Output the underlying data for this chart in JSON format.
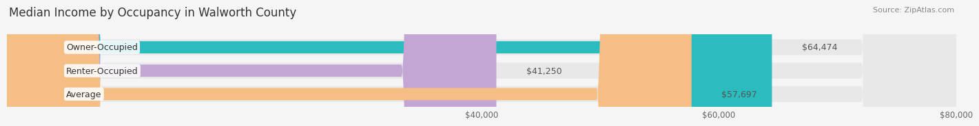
{
  "title": "Median Income by Occupancy in Walworth County",
  "source": "Source: ZipAtlas.com",
  "categories": [
    "Owner-Occupied",
    "Renter-Occupied",
    "Average"
  ],
  "values": [
    64474,
    41250,
    57697
  ],
  "labels": [
    "$64,474",
    "$41,250",
    "$57,697"
  ],
  "bar_colors": [
    "#2bbcbf",
    "#c4a6d4",
    "#f5be84"
  ],
  "bar_bg_color": "#e8e8e8",
  "background_color": "#f5f5f5",
  "xmin": 0,
  "xmax": 80000,
  "xticks": [
    40000,
    60000,
    80000
  ],
  "xtick_labels": [
    "$40,000",
    "$60,000",
    "$80,000"
  ],
  "title_fontsize": 12,
  "label_fontsize": 9,
  "tick_fontsize": 8.5,
  "source_fontsize": 8
}
